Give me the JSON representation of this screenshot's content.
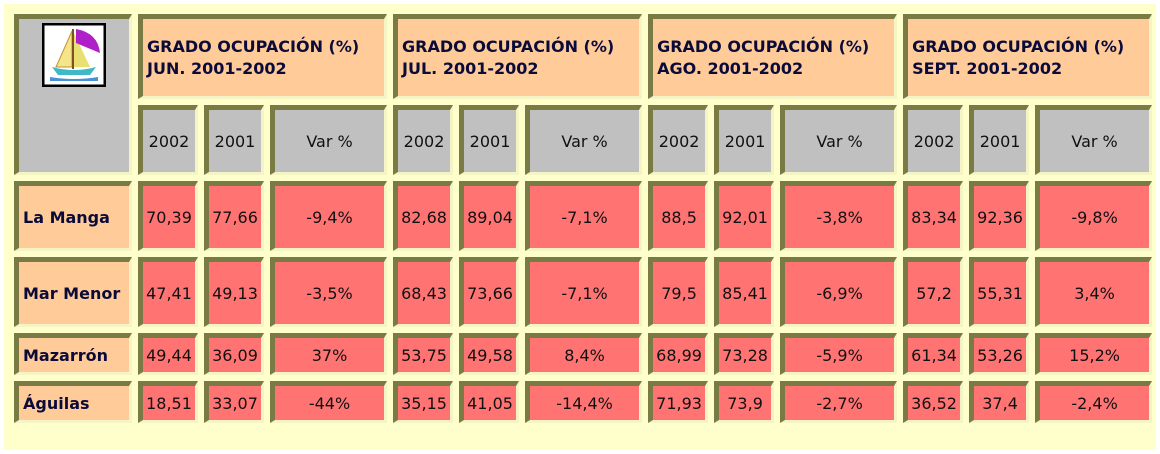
{
  "table": {
    "groups": [
      {
        "title": "GRADO OCUPACIÓN (%) JUN. 2001-2002",
        "columns": [
          "2002",
          "2001",
          "Var %"
        ]
      },
      {
        "title": "GRADO OCUPACIÓN (%) JUL. 2001-2002",
        "columns": [
          "2002",
          "2001",
          "Var %"
        ]
      },
      {
        "title": "GRADO OCUPACIÓN (%) AGO. 2001-2002",
        "columns": [
          "2002",
          "2001",
          "Var %"
        ]
      },
      {
        "title": "GRADO OCUPACIÓN (%) SEPT. 2001-2002",
        "columns": [
          "2002",
          "2001",
          "Var %"
        ]
      }
    ],
    "rows": [
      {
        "label": "La Manga",
        "values": [
          "70,39",
          "77,66",
          "-9,4%",
          "82,68",
          "89,04",
          "-7,1%",
          "88,5",
          "92,01",
          "-3,8%",
          "83,34",
          "92,36",
          "-9,8%"
        ]
      },
      {
        "label": "Mar Menor",
        "values": [
          "47,41",
          "49,13",
          "-3,5%",
          "68,43",
          "73,66",
          "-7,1%",
          "79,5",
          "85,41",
          "-6,9%",
          "57,2",
          "55,31",
          "3,4%"
        ]
      },
      {
        "label": "Mazarrón",
        "values": [
          "49,44",
          "36,09",
          "37%",
          "53,75",
          "49,58",
          "8,4%",
          "68,99",
          "73,28",
          "-5,9%",
          "61,34",
          "53,26",
          "15,2%"
        ]
      },
      {
        "label": "Águilas",
        "values": [
          "18,51",
          "33,07",
          "-44%",
          "35,15",
          "41,05",
          "-14,4%",
          "71,93",
          "73,9",
          "-2,7%",
          "36,52",
          "37,4",
          "-2,4%"
        ]
      }
    ]
  }
}
